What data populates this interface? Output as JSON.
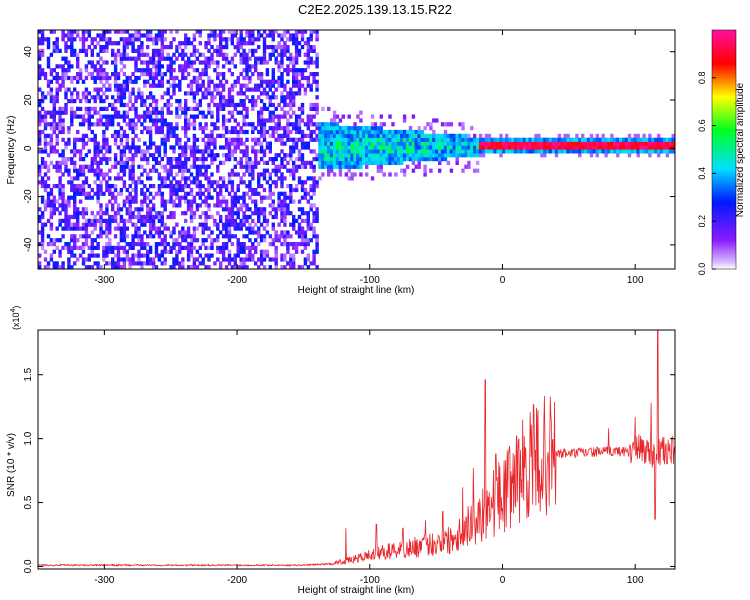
{
  "figure": {
    "title": "C2E2.2025.139.13.15.R22"
  },
  "chart_data": [
    {
      "type": "heatmap",
      "xlabel": "Height of straight line (km)",
      "ylabel": "Frequency (Hz)",
      "xlim": [
        -350,
        130
      ],
      "ylim": [
        -50,
        49
      ],
      "xticks": [
        -300,
        -200,
        -100,
        0,
        100
      ],
      "yticks": [
        -40,
        -20,
        0,
        20,
        40
      ],
      "colorbar": {
        "label": "Normalized spectral amplitude",
        "range": [
          0,
          1
        ],
        "ticks": [
          "0.0",
          "0.2",
          "0.4",
          "0.6",
          "0.8"
        ],
        "colormap": "rainbow (white-purple-blue-cyan-green-yellow-red-pink)"
      },
      "regions": [
        {
          "x_range": [
            -350,
            -140
          ],
          "freq_range": [
            -50,
            49
          ],
          "amplitude_range": [
            0.05,
            0.3
          ],
          "pattern": "broadband noise"
        },
        {
          "x_range": [
            -140,
            -20
          ],
          "freq_center": 0,
          "freq_halfwidth": [
            10,
            4
          ],
          "amplitude_range": [
            0.3,
            0.6
          ],
          "pattern": "narrowing band"
        },
        {
          "x_range": [
            -20,
            130
          ],
          "freq_center": 0,
          "freq_halfwidth": 1.5,
          "amplitude_range": [
            0.85,
            1.0
          ],
          "pattern": "narrow line at 0 Hz"
        }
      ]
    },
    {
      "type": "line",
      "xlabel": "Height of straight line (km)",
      "ylabel": "SNR (10 * v/v)",
      "multiplier": "(x10",
      "multiplier_exp": "4",
      "xlim": [
        -350,
        130
      ],
      "ylim": [
        -0.02,
        1.85
      ],
      "xticks": [
        -300,
        -200,
        -100,
        0,
        100
      ],
      "yticks": [
        "0.0",
        "0.5",
        "1.0",
        "1.5"
      ],
      "series": [
        {
          "color": "#e8262b",
          "x": [
            -350,
            -250,
            -150,
            -130,
            -110,
            -100,
            -80,
            -60,
            -40,
            -30,
            -20,
            -15,
            -10,
            0,
            10,
            20,
            30,
            40,
            60,
            80,
            90,
            100,
            105,
            110,
            115,
            118,
            120,
            125,
            130
          ],
          "y": [
            0.01,
            0.01,
            0.01,
            0.02,
            0.06,
            0.09,
            0.13,
            0.16,
            0.21,
            0.28,
            0.37,
            0.42,
            0.48,
            0.55,
            0.7,
            0.8,
            0.86,
            0.88,
            0.89,
            0.9,
            0.9,
            0.91,
            0.92,
            0.9,
            0.88,
            0.89,
            0.9,
            0.9,
            0.9
          ],
          "spikes": [
            {
              "x": -118,
              "y": 0.3
            },
            {
              "x": -95,
              "y": 0.33
            },
            {
              "x": -75,
              "y": 0.3
            },
            {
              "x": -58,
              "y": 0.36
            },
            {
              "x": -45,
              "y": 0.43
            },
            {
              "x": -30,
              "y": 0.62
            },
            {
              "x": -22,
              "y": 0.77
            },
            {
              "x": -13,
              "y": 1.46
            },
            {
              "x": -5,
              "y": 0.88
            },
            {
              "x": 12,
              "y": 0.99
            },
            {
              "x": 80,
              "y": 1.08
            },
            {
              "x": 100,
              "y": 1.17
            },
            {
              "x": 112,
              "y": 1.28
            },
            {
              "x": 115,
              "y": 0.37
            },
            {
              "x": 117,
              "y": 1.85
            }
          ]
        }
      ]
    }
  ]
}
